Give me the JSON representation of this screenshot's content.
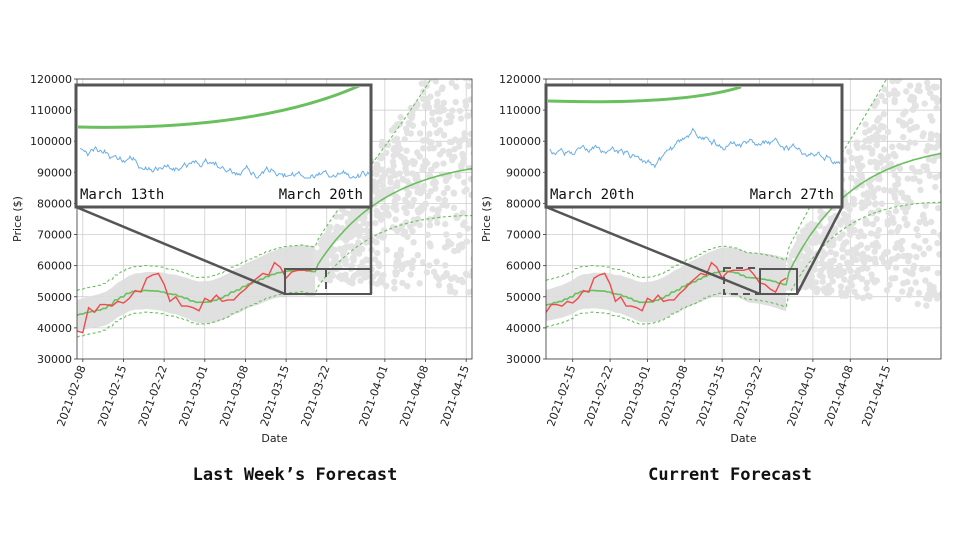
{
  "colors": {
    "observed": "#f04a4a",
    "forecast": "#6abf5e",
    "band": "#dddddd",
    "scatter": "#e3e3e3",
    "inset_line": "#6aaee8",
    "frame": "#555555",
    "grid": "#c8c8c8"
  },
  "chart_data": [
    {
      "type": "line",
      "caption": "Last Week’s Forecast",
      "xlabel": "Date",
      "ylabel": "Price ($)",
      "ylim": [
        30000,
        120000
      ],
      "yticks": [
        "30000",
        "40000",
        "50000",
        "60000",
        "70000",
        "80000",
        "90000",
        "100000",
        "110000",
        "120000"
      ],
      "xlim": [
        "2021-02-07",
        "2021-04-16"
      ],
      "xticks": [
        "2021-02-08",
        "2021-02-15",
        "2021-02-22",
        "2021-03-01",
        "2021-03-08",
        "2021-03-15",
        "2021-03-22",
        "2021-04-01",
        "2021-04-08",
        "2021-04-15"
      ],
      "grid": true,
      "observed": {
        "x": [
          "2021-02-07",
          "2021-02-08",
          "2021-02-09",
          "2021-02-10",
          "2021-02-11",
          "2021-02-12",
          "2021-02-13",
          "2021-02-14",
          "2021-02-15",
          "2021-02-16",
          "2021-02-17",
          "2021-02-18",
          "2021-02-19",
          "2021-02-20",
          "2021-02-21",
          "2021-02-22",
          "2021-02-23",
          "2021-02-24",
          "2021-02-25",
          "2021-02-26",
          "2021-02-27",
          "2021-02-28",
          "2021-03-01",
          "2021-03-02",
          "2021-03-03",
          "2021-03-04",
          "2021-03-05",
          "2021-03-06",
          "2021-03-07",
          "2021-03-08",
          "2021-03-09",
          "2021-03-10",
          "2021-03-11",
          "2021-03-12",
          "2021-03-13",
          "2021-03-14",
          "2021-03-15",
          "2021-03-16",
          "2021-03-17",
          "2021-03-18",
          "2021-03-19",
          "2021-03-20"
        ],
        "y": [
          39000,
          38500,
          46500,
          45000,
          47500,
          47500,
          47000,
          48500,
          48000,
          49500,
          52000,
          51500,
          56000,
          57000,
          57500,
          54000,
          48500,
          50000,
          47000,
          47000,
          46500,
          45500,
          49500,
          48500,
          50500,
          48500,
          49000,
          49000,
          51000,
          52500,
          54500,
          56000,
          57500,
          57000,
          61000,
          59500,
          56000,
          58000,
          58500,
          58500,
          58500,
          59000
        ]
      },
      "forecast_start": "2021-03-20",
      "inset": {
        "left_label": "March 13th",
        "right_label": "March 20th"
      }
    },
    {
      "type": "line",
      "caption": "Current Forecast",
      "xlabel": "Date",
      "ylabel": "Price ($)",
      "ylim": [
        30000,
        120000
      ],
      "yticks": [
        "30000",
        "40000",
        "50000",
        "60000",
        "70000",
        "80000",
        "90000",
        "100000",
        "110000",
        "120000"
      ],
      "xlim": [
        "2021-02-10",
        "2021-04-25"
      ],
      "xticks": [
        "2021-02-15",
        "2021-02-22",
        "2021-03-01",
        "2021-03-08",
        "2021-03-15",
        "2021-03-22",
        "2021-04-01",
        "2021-04-08",
        "2021-04-15"
      ],
      "grid": true,
      "observed": {
        "x": [
          "2021-02-10",
          "2021-02-11",
          "2021-02-12",
          "2021-02-13",
          "2021-02-14",
          "2021-02-15",
          "2021-02-16",
          "2021-02-17",
          "2021-02-18",
          "2021-02-19",
          "2021-02-20",
          "2021-02-21",
          "2021-02-22",
          "2021-02-23",
          "2021-02-24",
          "2021-02-25",
          "2021-02-26",
          "2021-02-27",
          "2021-02-28",
          "2021-03-01",
          "2021-03-02",
          "2021-03-03",
          "2021-03-04",
          "2021-03-05",
          "2021-03-06",
          "2021-03-07",
          "2021-03-08",
          "2021-03-09",
          "2021-03-10",
          "2021-03-11",
          "2021-03-12",
          "2021-03-13",
          "2021-03-14",
          "2021-03-15",
          "2021-03-16",
          "2021-03-17",
          "2021-03-18",
          "2021-03-19",
          "2021-03-20",
          "2021-03-21",
          "2021-03-22",
          "2021-03-23",
          "2021-03-24",
          "2021-03-25",
          "2021-03-26",
          "2021-03-27"
        ],
        "y": [
          45000,
          47500,
          47500,
          47000,
          48500,
          48000,
          49500,
          52000,
          51500,
          56000,
          57000,
          57500,
          54000,
          48500,
          50000,
          47000,
          47000,
          46500,
          45500,
          49500,
          48500,
          50500,
          48500,
          49000,
          49000,
          51000,
          52500,
          54500,
          56000,
          57500,
          57000,
          61000,
          59500,
          56000,
          58000,
          58500,
          58500,
          58500,
          59000,
          57000,
          54500,
          54000,
          52500,
          51500,
          55000,
          56000
        ]
      },
      "forecast_start": "2021-03-27",
      "inset": {
        "left_label": "March 20th",
        "right_label": "March 27th"
      }
    }
  ]
}
